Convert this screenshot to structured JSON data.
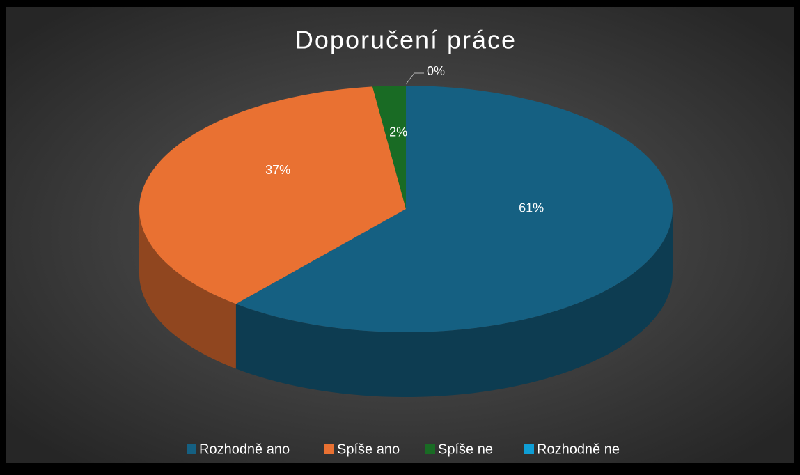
{
  "chart_data": {
    "type": "pie",
    "title": "Doporučení práce",
    "categories": [
      "Rozhodně ano",
      "Spíše ano",
      "Spíše ne",
      "Rozhodně ne"
    ],
    "values": [
      61,
      37,
      2,
      0
    ],
    "value_labels": [
      "61%",
      "37%",
      "2%",
      "0%"
    ],
    "colors": [
      "#156082",
      "#e97132",
      "#196b24",
      "#0f9ed5"
    ],
    "legend": "bottom"
  }
}
